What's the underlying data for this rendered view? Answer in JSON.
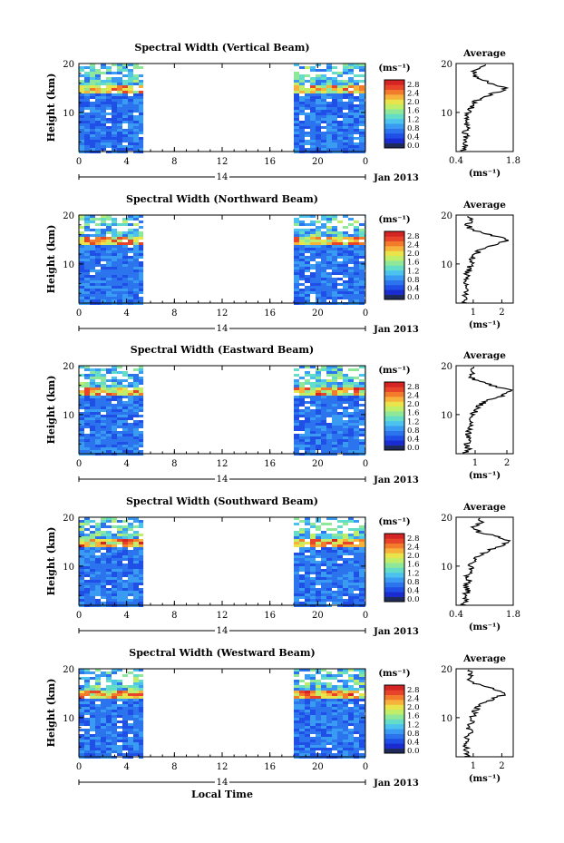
{
  "colorbar": {
    "unit": "(ms⁻¹)",
    "ticks": [
      "2.8",
      "2.4",
      "2.0",
      "1.6",
      "1.2",
      "0.8",
      "0.4",
      "0.0"
    ],
    "colors": [
      "#1e2a5a",
      "#1a2bd0",
      "#1f4fe6",
      "#2b74ee",
      "#3a9bf2",
      "#4cc2ee",
      "#63dcc8",
      "#8fe79a",
      "#c0ee6a",
      "#e9e44c",
      "#f6b23a",
      "#f37b2c",
      "#e8442a",
      "#d42424"
    ]
  },
  "time_axis": {
    "ticks": [
      "0",
      "4",
      "8",
      "12",
      "16",
      "20",
      "0"
    ],
    "tick_values": [
      0,
      4,
      8,
      12,
      16,
      20,
      24
    ],
    "day_label": "14",
    "month_label": "Jan 2013",
    "xlabel": "Local Time",
    "data_gap_hours": [
      5.4,
      18.0
    ]
  },
  "height_axis": {
    "label": "Height (km)",
    "ticks": [
      "20",
      "10"
    ],
    "tick_values": [
      20,
      10
    ],
    "range_km": [
      2,
      20
    ]
  },
  "avg_title": "Average",
  "avg_xlabel": "(ms⁻¹)",
  "chart_data": [
    {
      "type": "heatmap",
      "title": "Spectral Width (Vertical Beam)",
      "xlabel": "",
      "ylabel": "Height (km)",
      "hot_layer_km": [
        14,
        16
      ],
      "average_profile": {
        "title": "Average",
        "xlabel": "(ms⁻¹)",
        "x_ticks": [
          "0.4",
          "1.8"
        ],
        "x_tick_values": [
          0.4,
          1.8
        ],
        "xlim": [
          0.4,
          1.8
        ],
        "height_km": [
          2,
          3,
          4,
          5,
          6,
          7,
          8,
          9,
          10,
          11,
          12,
          13,
          14,
          15,
          16,
          17,
          18,
          19,
          20
        ],
        "width": [
          0.55,
          0.62,
          0.58,
          0.66,
          0.6,
          0.7,
          0.64,
          0.72,
          0.68,
          0.78,
          0.85,
          1.0,
          1.35,
          1.65,
          1.25,
          0.9,
          0.8,
          0.95,
          1.1
        ]
      }
    },
    {
      "type": "heatmap",
      "title": "Spectral Width (Northward Beam)",
      "xlabel": "",
      "ylabel": "Height (km)",
      "hot_layer_km": [
        14,
        16
      ],
      "average_profile": {
        "title": "Average",
        "xlabel": "(ms⁻¹)",
        "x_ticks": [
          "1",
          "2"
        ],
        "x_tick_values": [
          1,
          2
        ],
        "xlim": [
          0.4,
          2.4
        ],
        "height_km": [
          2,
          3,
          4,
          5,
          6,
          7,
          8,
          9,
          10,
          11,
          12,
          13,
          14,
          15,
          16,
          17,
          18,
          19,
          20
        ],
        "width": [
          0.7,
          0.75,
          0.72,
          0.8,
          0.76,
          0.82,
          0.8,
          0.86,
          0.9,
          0.95,
          1.05,
          1.3,
          1.8,
          2.2,
          1.6,
          0.95,
          0.8,
          0.9,
          0.85
        ]
      }
    },
    {
      "type": "heatmap",
      "title": "Spectral Width (Eastward Beam)",
      "xlabel": "",
      "ylabel": "Height (km)",
      "hot_layer_km": [
        14,
        16
      ],
      "average_profile": {
        "title": "Average",
        "xlabel": "(ms⁻¹)",
        "x_ticks": [
          "1",
          "2"
        ],
        "x_tick_values": [
          1,
          2
        ],
        "xlim": [
          0.4,
          2.2
        ],
        "height_km": [
          2,
          3,
          4,
          5,
          6,
          7,
          8,
          9,
          10,
          11,
          12,
          13,
          14,
          15,
          16,
          17,
          18,
          19,
          20
        ],
        "width": [
          0.7,
          0.78,
          0.74,
          0.82,
          0.78,
          0.86,
          0.82,
          0.9,
          0.95,
          1.0,
          1.15,
          1.45,
          1.9,
          2.1,
          1.5,
          1.0,
          0.85,
          0.95,
          0.9
        ]
      }
    },
    {
      "type": "heatmap",
      "title": "Spectral Width (Southward Beam)",
      "xlabel": "",
      "ylabel": "Height (km)",
      "hot_layer_km": [
        14,
        16
      ],
      "average_profile": {
        "title": "Average",
        "xlabel": "(ms⁻¹)",
        "x_ticks": [
          "0.4",
          "1.8"
        ],
        "x_tick_values": [
          0.4,
          1.8
        ],
        "xlim": [
          0.4,
          1.8
        ],
        "height_km": [
          2,
          3,
          4,
          5,
          6,
          7,
          8,
          9,
          10,
          11,
          12,
          13,
          14,
          15,
          16,
          17,
          18,
          19,
          20
        ],
        "width": [
          0.6,
          0.66,
          0.62,
          0.7,
          0.64,
          0.74,
          0.68,
          0.78,
          0.75,
          0.85,
          0.95,
          1.15,
          1.45,
          1.7,
          1.4,
          0.95,
          0.85,
          1.0,
          1.05
        ]
      }
    },
    {
      "type": "heatmap",
      "title": "Spectral Width (Westward Beam)",
      "xlabel": "Local Time",
      "ylabel": "Height (km)",
      "hot_layer_km": [
        14,
        16
      ],
      "average_profile": {
        "title": "Average",
        "xlabel": "(ms⁻¹)",
        "x_ticks": [
          "1",
          "2"
        ],
        "x_tick_values": [
          1,
          2
        ],
        "xlim": [
          0.4,
          2.4
        ],
        "height_km": [
          2,
          3,
          4,
          5,
          6,
          7,
          8,
          9,
          10,
          11,
          12,
          13,
          14,
          15,
          16,
          17,
          18,
          19,
          20
        ],
        "width": [
          0.75,
          0.8,
          0.76,
          0.84,
          0.8,
          0.88,
          0.84,
          0.92,
          0.96,
          1.02,
          1.12,
          1.35,
          1.75,
          2.2,
          1.7,
          1.05,
          0.85,
          0.9,
          0.8
        ]
      }
    }
  ]
}
